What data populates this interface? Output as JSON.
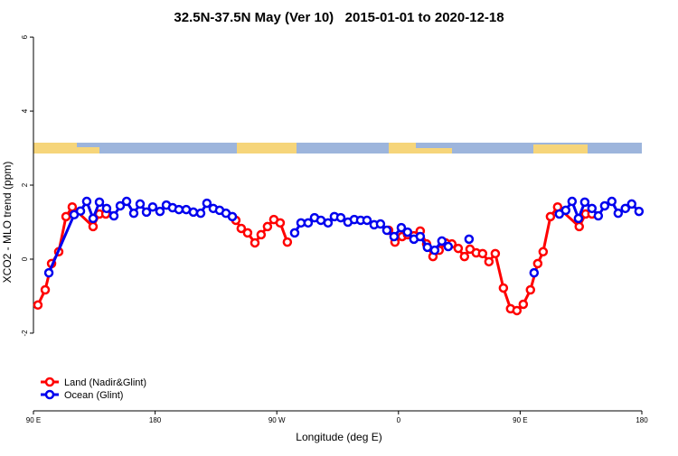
{
  "chart_data": {
    "type": "line",
    "title": "32.5N-37.5N May (Ver 10)   2015-01-01 to 2020-12-18",
    "x_label": "Longitude (deg E)",
    "y_label": "XCO2 - MLO trend (ppm)",
    "xlim": [
      90,
      540
    ],
    "ylim": [
      -4.1,
      6.1
    ],
    "xticks": [
      {
        "value": 90,
        "label": "90 E"
      },
      {
        "value": 180,
        "label": "180"
      },
      {
        "value": 270,
        "label": "90 W"
      },
      {
        "value": 360,
        "label": "0"
      },
      {
        "value": 450,
        "label": "90 E"
      },
      {
        "value": 540,
        "label": "180"
      }
    ],
    "yticks": [
      -2,
      0,
      2,
      4,
      6
    ],
    "legend": "bottom-left",
    "series": [
      {
        "name": "Land (Nadir&Glint)",
        "color": "#ff0000",
        "x": [
          93.3,
          98.7,
          103.4,
          108.7,
          114.1,
          118.7,
          134.1,
          138.8,
          143.5,
          null,
          239.7,
          243.7,
          248.4,
          253.8,
          258.4,
          263.1,
          267.8,
          272.5,
          277.8,
          null,
          352.7,
          357.4,
          362.7,
          366.7,
          371.4,
          376.1,
          380.8,
          385.5,
          390.1,
          394.8,
          399.5,
          404.2,
          408.8,
          412.9,
          417.5,
          422.2,
          426.9,
          431.6,
          437.6,
          442.9,
          447.6,
          452.3,
          457.6,
          463.0,
          467.0,
          472.4,
          477.7,
          493.7,
          498.4,
          503.1
        ],
        "values": [
          -1.24,
          -0.83,
          -0.12,
          0.2,
          1.15,
          1.41,
          0.88,
          1.22,
          1.22,
          null,
          1.05,
          0.83,
          0.71,
          0.44,
          0.66,
          0.88,
          1.07,
          0.98,
          0.46,
          null,
          0.78,
          0.46,
          0.61,
          0.66,
          0.63,
          0.76,
          0.41,
          0.07,
          0.24,
          0.44,
          0.41,
          0.29,
          0.07,
          0.27,
          0.17,
          0.15,
          -0.07,
          0.15,
          -0.78,
          -1.34,
          -1.39,
          -1.22,
          -0.83,
          -0.12,
          0.2,
          1.15,
          1.41,
          0.88,
          1.22,
          1.22
        ]
      },
      {
        "name": "Ocean (Glint)",
        "color": "#0000ee",
        "x": [
          101.4,
          120.1,
          124.8,
          129.4,
          134.1,
          138.8,
          144.1,
          149.5,
          154.2,
          158.9,
          164.2,
          168.9,
          173.6,
          178.2,
          183.6,
          188.3,
          192.9,
          197.6,
          203.0,
          208.3,
          213.7,
          218.3,
          223.0,
          227.7,
          232.4,
          237.1,
          null,
          283.2,
          287.9,
          293.2,
          297.9,
          302.6,
          307.9,
          312.6,
          317.3,
          322.6,
          327.3,
          332.0,
          336.7,
          342.0,
          346.7,
          351.4,
          356.7,
          362.1,
          366.7,
          371.4,
          376.1,
          381.4,
          386.8,
          392.1,
          396.8,
          null,
          412.2,
          null,
          460.3,
          null,
          479.0,
          483.7,
          488.4,
          493.1,
          497.8,
          503.1,
          507.8,
          512.5,
          517.8,
          522.5,
          527.8,
          532.5,
          537.9
        ],
        "values": [
          -0.37,
          1.2,
          1.3,
          1.56,
          1.1,
          1.54,
          1.37,
          1.17,
          1.44,
          1.56,
          1.24,
          1.49,
          1.27,
          1.41,
          1.29,
          1.46,
          1.39,
          1.34,
          1.34,
          1.27,
          1.24,
          1.51,
          1.37,
          1.32,
          1.24,
          1.15,
          null,
          0.71,
          0.98,
          0.98,
          1.12,
          1.05,
          0.98,
          1.15,
          1.12,
          1.0,
          1.07,
          1.05,
          1.05,
          0.93,
          0.95,
          0.78,
          0.61,
          0.85,
          0.73,
          0.54,
          0.61,
          0.32,
          0.24,
          0.49,
          0.34,
          null,
          0.54,
          null,
          -0.37,
          null,
          1.22,
          1.32,
          1.56,
          1.1,
          1.54,
          1.37,
          1.17,
          1.44,
          1.56,
          1.24,
          1.37,
          1.49,
          1.29
        ]
      }
    ]
  }
}
